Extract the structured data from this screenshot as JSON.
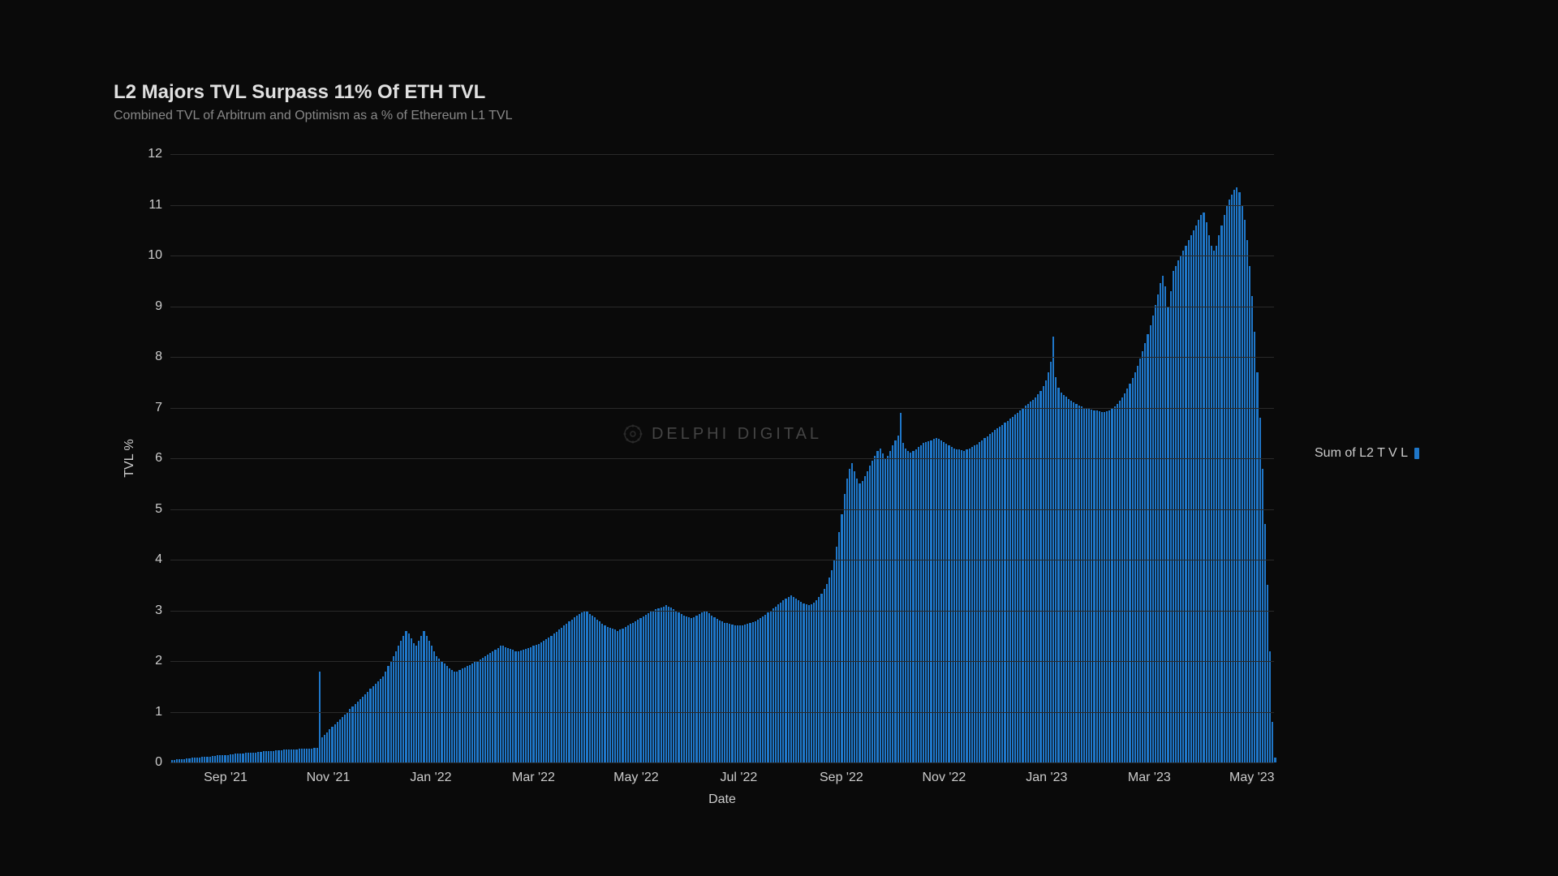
{
  "chart": {
    "type": "bar",
    "title": "L2 Majors TVL Surpass 11% Of ETH TVL",
    "subtitle": "Combined TVL of Arbitrum and Optimism as a % of Ethereum L1 TVL",
    "x_axis_label": "Date",
    "y_axis_label": "TVL %",
    "background_color": "#0a0a0a",
    "grid_color": "#2a2a2a",
    "bar_color": "#1f77c9",
    "text_color": "#cccccc",
    "title_color": "#e0e0e0",
    "subtitle_color": "#888888",
    "title_fontsize": 24,
    "subtitle_fontsize": 16,
    "axis_fontsize": 16,
    "ylim": [
      0,
      12
    ],
    "y_ticks": [
      0,
      1,
      2,
      3,
      4,
      5,
      6,
      7,
      8,
      9,
      10,
      11,
      12
    ],
    "x_ticks": [
      "Sep '21",
      "Nov '21",
      "Jan '22",
      "Mar '22",
      "May '22",
      "Jul '22",
      "Sep '22",
      "Nov '22",
      "Jan '23",
      "Mar '23",
      "May '23"
    ],
    "x_tick_positions_pct": [
      5.0,
      14.3,
      23.6,
      32.9,
      42.2,
      51.5,
      60.8,
      70.1,
      79.4,
      88.7,
      98.0
    ],
    "watermark": "DELPHI DIGITAL",
    "legend": {
      "label": "Sum of L2 T V L",
      "color": "#1f77c9"
    },
    "values": [
      0.05,
      0.05,
      0.06,
      0.06,
      0.07,
      0.07,
      0.08,
      0.08,
      0.09,
      0.09,
      0.1,
      0.1,
      0.11,
      0.11,
      0.12,
      0.12,
      0.13,
      0.13,
      0.14,
      0.14,
      0.15,
      0.15,
      0.15,
      0.16,
      0.16,
      0.17,
      0.17,
      0.18,
      0.18,
      0.19,
      0.19,
      0.2,
      0.2,
      0.2,
      0.21,
      0.21,
      0.22,
      0.22,
      0.22,
      0.23,
      0.23,
      0.24,
      0.24,
      0.24,
      0.25,
      0.25,
      0.25,
      0.26,
      0.26,
      0.26,
      0.27,
      0.27,
      0.27,
      0.28,
      0.28,
      0.28,
      0.29,
      0.29,
      1.8,
      0.5,
      0.55,
      0.6,
      0.65,
      0.7,
      0.75,
      0.8,
      0.85,
      0.9,
      0.95,
      1.0,
      1.05,
      1.1,
      1.15,
      1.2,
      1.25,
      1.3,
      1.35,
      1.4,
      1.45,
      1.5,
      1.55,
      1.6,
      1.65,
      1.7,
      1.8,
      1.9,
      2.0,
      2.1,
      2.2,
      2.3,
      2.4,
      2.5,
      2.6,
      2.55,
      2.45,
      2.35,
      2.3,
      2.4,
      2.5,
      2.6,
      2.5,
      2.4,
      2.3,
      2.2,
      2.1,
      2.05,
      2.0,
      1.95,
      1.9,
      1.85,
      1.82,
      1.8,
      1.8,
      1.82,
      1.85,
      1.88,
      1.9,
      1.92,
      1.95,
      1.98,
      2.0,
      2.03,
      2.06,
      2.1,
      2.13,
      2.16,
      2.2,
      2.23,
      2.26,
      2.3,
      2.3,
      2.28,
      2.26,
      2.24,
      2.22,
      2.2,
      2.2,
      2.21,
      2.22,
      2.24,
      2.26,
      2.28,
      2.3,
      2.32,
      2.34,
      2.37,
      2.4,
      2.43,
      2.46,
      2.5,
      2.54,
      2.58,
      2.62,
      2.66,
      2.7,
      2.74,
      2.78,
      2.82,
      2.86,
      2.9,
      2.93,
      2.96,
      3.0,
      2.97,
      2.93,
      2.9,
      2.86,
      2.82,
      2.78,
      2.74,
      2.7,
      2.68,
      2.66,
      2.64,
      2.62,
      2.6,
      2.62,
      2.64,
      2.67,
      2.7,
      2.73,
      2.76,
      2.79,
      2.82,
      2.85,
      2.88,
      2.91,
      2.94,
      2.97,
      3.0,
      3.02,
      3.04,
      3.06,
      3.08,
      3.1,
      3.08,
      3.05,
      3.02,
      2.99,
      2.96,
      2.93,
      2.9,
      2.88,
      2.86,
      2.85,
      2.87,
      2.9,
      2.93,
      2.96,
      3.0,
      2.97,
      2.94,
      2.9,
      2.87,
      2.83,
      2.8,
      2.78,
      2.76,
      2.75,
      2.73,
      2.72,
      2.71,
      2.7,
      2.7,
      2.71,
      2.72,
      2.73,
      2.75,
      2.77,
      2.79,
      2.82,
      2.85,
      2.88,
      2.92,
      2.96,
      3.0,
      3.04,
      3.08,
      3.12,
      3.16,
      3.2,
      3.23,
      3.26,
      3.3,
      3.27,
      3.23,
      3.2,
      3.17,
      3.14,
      3.12,
      3.1,
      3.12,
      3.15,
      3.2,
      3.26,
      3.33,
      3.42,
      3.52,
      3.65,
      3.8,
      4.0,
      4.25,
      4.55,
      4.9,
      5.3,
      5.6,
      5.8,
      5.9,
      5.75,
      5.6,
      5.5,
      5.55,
      5.65,
      5.75,
      5.85,
      5.95,
      6.05,
      6.15,
      6.2,
      6.1,
      6.0,
      6.05,
      6.15,
      6.25,
      6.35,
      6.45,
      6.9,
      6.3,
      6.2,
      6.15,
      6.12,
      6.14,
      6.18,
      6.22,
      6.26,
      6.3,
      6.32,
      6.34,
      6.36,
      6.38,
      6.4,
      6.38,
      6.35,
      6.32,
      6.29,
      6.26,
      6.23,
      6.2,
      6.18,
      6.17,
      6.16,
      6.15,
      6.17,
      6.19,
      6.22,
      6.25,
      6.28,
      6.32,
      6.36,
      6.4,
      6.44,
      6.48,
      6.52,
      6.56,
      6.6,
      6.63,
      6.66,
      6.7,
      6.74,
      6.78,
      6.82,
      6.86,
      6.9,
      6.95,
      7.0,
      7.04,
      7.08,
      7.12,
      7.16,
      7.2,
      7.26,
      7.33,
      7.42,
      7.54,
      7.7,
      7.9,
      8.4,
      7.6,
      7.4,
      7.3,
      7.25,
      7.21,
      7.17,
      7.13,
      7.1,
      7.07,
      7.04,
      7.02,
      7.0,
      6.98,
      6.97,
      6.96,
      6.95,
      6.94,
      6.93,
      6.92,
      6.92,
      6.93,
      6.95,
      6.98,
      7.02,
      7.07,
      7.13,
      7.2,
      7.28,
      7.37,
      7.47,
      7.58,
      7.7,
      7.83,
      7.97,
      8.12,
      8.28,
      8.45,
      8.63,
      8.82,
      9.02,
      9.23,
      9.45,
      9.6,
      9.4,
      9.0,
      9.3,
      9.7,
      9.8,
      9.9,
      10.0,
      10.1,
      10.2,
      10.3,
      10.4,
      10.5,
      10.6,
      10.7,
      10.8,
      10.85,
      10.65,
      10.4,
      10.2,
      10.1,
      10.2,
      10.4,
      10.6,
      10.8,
      11.0,
      11.1,
      11.2,
      11.3,
      11.35,
      11.25,
      11.0,
      10.7,
      10.3,
      9.8,
      9.2,
      8.5,
      7.7,
      6.8,
      5.8,
      4.7,
      3.5,
      2.2,
      0.8,
      0.1
    ]
  }
}
